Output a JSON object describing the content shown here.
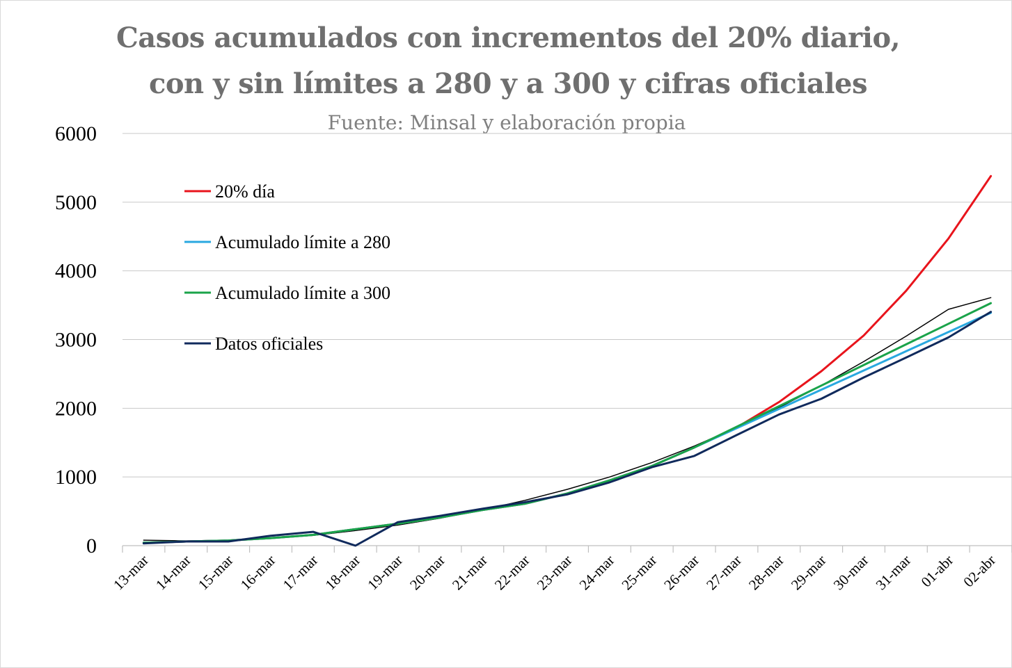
{
  "chart_data": {
    "type": "line",
    "title_lines": [
      "Casos acumulados con incrementos del 20% diario,",
      "con y sin límites a 280 y a 300 y cifras oficiales"
    ],
    "subtitle": "Fuente: Minsal y elaboración propia",
    "xlabel": "",
    "ylabel": "",
    "ylim": [
      0,
      6000
    ],
    "yticks": [
      0,
      1000,
      2000,
      3000,
      4000,
      5000,
      6000
    ],
    "grid": true,
    "legend_position": "top-left",
    "categories": [
      "13-mar",
      "14-mar",
      "15-mar",
      "16-mar",
      "17-mar",
      "18-mar",
      "19-mar",
      "20-mar",
      "21-mar",
      "22-mar",
      "23-mar",
      "24-mar",
      "25-mar",
      "26-mar",
      "27-mar",
      "28-mar",
      "29-mar",
      "30-mar",
      "31-mar",
      "01-abr",
      "02-abr"
    ],
    "series": [
      {
        "name": "20% día",
        "color": "#e8141c",
        "values": [
          43,
          61,
          75,
          110,
          157,
          240,
          320,
          410,
          520,
          610,
          760,
          950,
          1160,
          1430,
          1720,
          2090,
          2540,
          3060,
          3710,
          4470,
          5380
        ]
      },
      {
        "name": "Acumulado límite a 280",
        "color": "#29a8e0",
        "values": [
          43,
          61,
          75,
          110,
          157,
          240,
          320,
          410,
          520,
          610,
          760,
          950,
          1160,
          1430,
          1710,
          1990,
          2270,
          2550,
          2830,
          3110,
          3390
        ]
      },
      {
        "name": "Acumulado límite a 300",
        "color": "#1aa34a",
        "values": [
          43,
          61,
          75,
          110,
          157,
          240,
          320,
          410,
          520,
          610,
          760,
          950,
          1160,
          1430,
          1730,
          2030,
          2330,
          2630,
          2930,
          3230,
          3530
        ]
      },
      {
        "name": "Datos oficiales",
        "color": "#102a5c",
        "values": [
          33,
          61,
          61,
          145,
          201,
          0,
          342,
          434,
          537,
          632,
          746,
          922,
          1142,
          1306,
          1610,
          1909,
          2139,
          2449,
          2738,
          3031,
          3404
        ]
      },
      {
        "color": "#000000",
        "values": [
          80,
          70,
          80,
          110,
          150,
          220,
          300,
          400,
          520,
          660,
          820,
          1000,
          1210,
          1450,
          1720,
          2010,
          2330,
          2680,
          3050,
          3440,
          3610
        ]
      }
    ]
  }
}
